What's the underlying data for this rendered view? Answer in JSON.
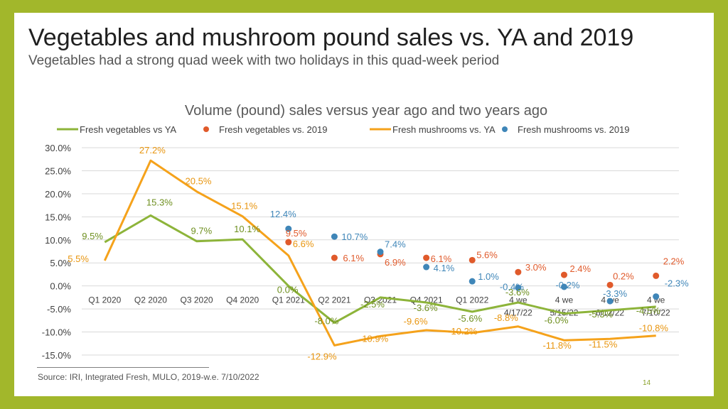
{
  "slide": {
    "title": "Vegetables and mushroom pound sales vs. YA and 2019",
    "subtitle": "Vegetables had a strong quad week with two holidays in this quad-week period",
    "source": "Source: IRI, Integrated Fresh, MULO, 2019-w.e. 7/10/2022",
    "page_number": "14"
  },
  "chart_data": {
    "type": "line",
    "title": "Volume (pound) sales versus year ago and two years ago",
    "categories": [
      "Q1 2020",
      "Q2 2020",
      "Q3 2020",
      "Q4 2020",
      "Q1 2021",
      "Q2 2021",
      "Q3 2021",
      "Q4 2021",
      "Q1 2022",
      "4 we 4/17/22",
      "4 we 5/15/22",
      "4 we 6/12/22",
      "4 we 7/10/22"
    ],
    "ylim": [
      -15,
      30
    ],
    "yticks": [
      "30.0%",
      "25.0%",
      "20.0%",
      "15.0%",
      "10.0%",
      "5.0%",
      "0.0%",
      "-5.0%",
      "-10.0%",
      "-15.0%"
    ],
    "grid": true,
    "legend_position": "top",
    "series": [
      {
        "name": "Fresh vegetables vs YA",
        "style": "line",
        "color": "#8db43a",
        "values": [
          9.5,
          15.3,
          9.7,
          10.1,
          0.0,
          -8.0,
          -2.5,
          -3.6,
          -5.6,
          -3.6,
          -6.0,
          -5.3,
          -4.5
        ],
        "labels": [
          "9.5%",
          "15.3%",
          "9.7%",
          "10.1%",
          "0.0%",
          "-8.0%",
          "-2.5%",
          "-3.6%",
          "-5.6%",
          "-3.6%",
          "-6.0%",
          "-5.3%",
          "-4.5%"
        ]
      },
      {
        "name": "Fresh vegetables vs. 2019",
        "style": "dot",
        "color": "#e05a2b",
        "values": [
          null,
          null,
          null,
          null,
          9.5,
          6.1,
          6.9,
          6.1,
          5.6,
          3.0,
          2.4,
          0.2,
          2.2
        ],
        "labels": [
          "",
          "",
          "",
          "",
          "9.5%",
          "6.1%",
          "6.9%",
          "6.1%",
          "5.6%",
          "3.0%",
          "2.4%",
          "0.2%",
          "2.2%"
        ]
      },
      {
        "name": "Fresh mushrooms vs. YA",
        "style": "line",
        "color": "#f5a21b",
        "values": [
          5.5,
          27.2,
          20.5,
          15.1,
          6.6,
          -12.9,
          -10.9,
          -9.6,
          -10.2,
          -8.8,
          -11.8,
          -11.5,
          -10.8
        ],
        "labels": [
          "5.5%",
          "27.2%",
          "20.5%",
          "15.1%",
          "6.6%",
          "-12.9%",
          "-10.9%",
          "-9.6%",
          "-10.2%",
          "-8.8%",
          "-11.8%",
          "-11.5%",
          "-10.8%"
        ]
      },
      {
        "name": "Fresh mushrooms vs. 2019",
        "style": "dot",
        "color": "#3f86b8",
        "values": [
          null,
          null,
          null,
          null,
          12.4,
          10.7,
          7.4,
          4.1,
          1.0,
          -0.4,
          -0.2,
          -3.3,
          -2.3
        ],
        "labels": [
          "",
          "",
          "",
          "",
          "12.4%",
          "10.7%",
          "7.4%",
          "4.1%",
          "1.0%",
          "-0.4%",
          "-0.2%",
          "-3.3%",
          "-2.3%"
        ]
      }
    ]
  }
}
